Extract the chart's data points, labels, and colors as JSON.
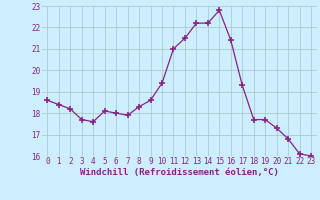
{
  "x": [
    0,
    1,
    2,
    3,
    4,
    5,
    6,
    7,
    8,
    9,
    10,
    11,
    12,
    13,
    14,
    15,
    16,
    17,
    18,
    19,
    20,
    21,
    22,
    23
  ],
  "y": [
    18.6,
    18.4,
    18.2,
    17.7,
    17.6,
    18.1,
    18.0,
    17.9,
    18.3,
    18.6,
    19.4,
    21.0,
    21.5,
    22.2,
    22.2,
    22.8,
    21.4,
    19.3,
    17.7,
    17.7,
    17.3,
    16.8,
    16.1,
    16.0
  ],
  "line_color": "#882288",
  "marker": "+",
  "marker_size": 4,
  "marker_linewidth": 1.2,
  "bg_color": "#cceeff",
  "grid_color": "#aacccc",
  "xlabel": "Windchill (Refroidissement éolien,°C)",
  "xlabel_color": "#882288",
  "tick_color": "#882288",
  "ylim": [
    16,
    23
  ],
  "xlim_min": -0.5,
  "xlim_max": 23.5,
  "yticks": [
    16,
    17,
    18,
    19,
    20,
    21,
    22,
    23
  ],
  "xticks": [
    0,
    1,
    2,
    3,
    4,
    5,
    6,
    7,
    8,
    9,
    10,
    11,
    12,
    13,
    14,
    15,
    16,
    17,
    18,
    19,
    20,
    21,
    22,
    23
  ],
  "tick_fontsize": 5.5,
  "xlabel_fontsize": 6.5
}
